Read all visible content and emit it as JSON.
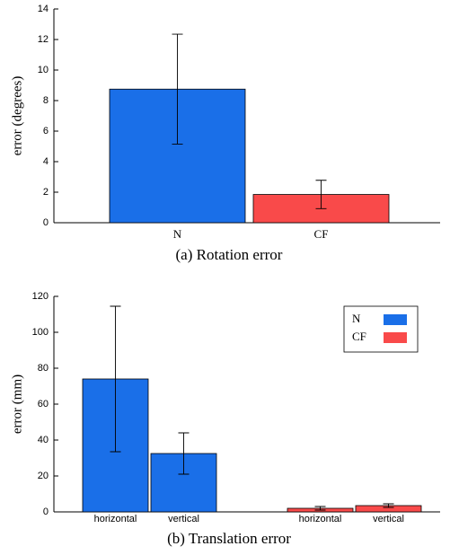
{
  "chart_data": [
    {
      "type": "bar",
      "categories": [
        "N",
        "CF"
      ],
      "values": [
        8.75,
        1.85
      ],
      "errors": [
        3.6,
        0.93
      ],
      "colors": [
        "#1a6fe8",
        "#f94a4a"
      ],
      "ylabel": "error (degrees)",
      "caption": "(a) Rotation error",
      "ylim": [
        0,
        14
      ],
      "yticks": [
        0,
        2,
        4,
        6,
        8,
        10,
        12,
        14
      ]
    },
    {
      "type": "bar",
      "categories": [
        "horizontal",
        "vertical"
      ],
      "series": [
        {
          "name": "N",
          "color": "#1a6fe8",
          "values": [
            74,
            32.5
          ],
          "errors": [
            40.5,
            11.5
          ]
        },
        {
          "name": "CF",
          "color": "#f94a4a",
          "values": [
            2,
            3.5
          ],
          "errors": [
            1,
            1
          ]
        }
      ],
      "legend": "upper right",
      "ylabel": "error (mm)",
      "caption": "(b) Translation error",
      "ylim": [
        0,
        120
      ],
      "yticks": [
        0,
        20,
        40,
        60,
        80,
        100,
        120
      ]
    }
  ]
}
